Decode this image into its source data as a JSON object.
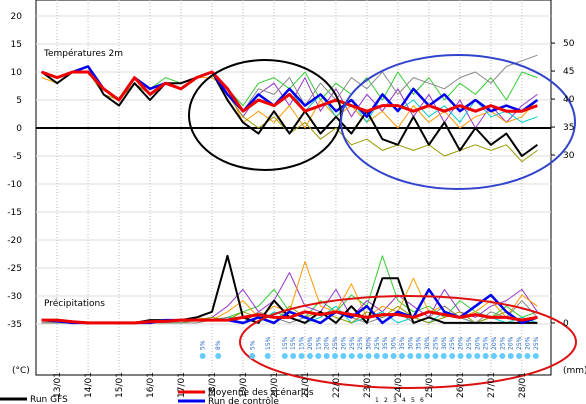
{
  "chart_data": {
    "type": "line",
    "temp_label": "Températures 2m",
    "precip_label": "Précipitations",
    "ylabel": "(°C)",
    "y2label": "(mm)",
    "ylim": [
      -44.1,
      22.86
    ],
    "yticks": [
      20,
      15,
      10,
      5,
      0,
      -5,
      -10,
      -15,
      -20,
      -25,
      -30,
      -35
    ],
    "y2lim": [
      -9.3,
      57.7
    ],
    "y2ticks": [
      50,
      45,
      40,
      35,
      30,
      0
    ],
    "xlim": [
      -0.68,
      15.94
    ],
    "xticks": [
      {
        "value": 0,
        "label": "13/01"
      },
      {
        "value": 1,
        "label": "14/01"
      },
      {
        "value": 2,
        "label": "15/01"
      },
      {
        "value": 3,
        "label": "16/01"
      },
      {
        "value": 4,
        "label": "17/01"
      },
      {
        "value": 5,
        "label": "18/01"
      },
      {
        "value": 6,
        "label": "19/01"
      },
      {
        "value": 7,
        "label": "20/01"
      },
      {
        "value": 8,
        "label": "21/01"
      },
      {
        "value": 9,
        "label": "22/01"
      },
      {
        "value": 10,
        "label": "23/01"
      },
      {
        "value": 11,
        "label": "24/01"
      },
      {
        "value": 12,
        "label": "25/01"
      },
      {
        "value": 13,
        "label": "26/01"
      },
      {
        "value": 14,
        "label": "27/01"
      },
      {
        "value": 15,
        "label": "28/01"
      }
    ],
    "grid": true,
    "x": [
      -0.5,
      0,
      0.5,
      1,
      1.5,
      2,
      2.5,
      3,
      3.5,
      4,
      4.5,
      5,
      5.5,
      6,
      6.5,
      7,
      7.5,
      8,
      8.5,
      9,
      9.5,
      10,
      10.5,
      11,
      11.5,
      12,
      12.5,
      13,
      13.5,
      14,
      14.5,
      15,
      15.5
    ],
    "series": [
      {
        "name": "1",
        "color": "#33cc33",
        "width": 1,
        "values": [
          10,
          9,
          10,
          11,
          7,
          5,
          9,
          7,
          9,
          8,
          9,
          10,
          7,
          4,
          8,
          9,
          7,
          10,
          5,
          8,
          6,
          9,
          5,
          10,
          6,
          9,
          5,
          8,
          6,
          9,
          5,
          10,
          9
        ],
        "precip_values": [
          0,
          0,
          0,
          0,
          0,
          0,
          0,
          0,
          0,
          0.5,
          1,
          0.5,
          1,
          2,
          3,
          6,
          2,
          1,
          4,
          2,
          5,
          3,
          12,
          4,
          2,
          3,
          1,
          4,
          2,
          1,
          3,
          1,
          2
        ]
      },
      {
        "name": "2",
        "color": "#9933cc",
        "width": 1,
        "values": [
          10,
          8,
          10,
          10,
          6,
          4,
          8,
          6,
          8,
          8,
          9,
          10,
          6,
          2,
          6,
          8,
          4,
          9,
          3,
          7,
          2,
          6,
          3,
          7,
          2,
          6,
          1,
          5,
          0,
          4,
          1,
          4,
          6
        ],
        "precip_values": [
          0,
          0,
          0,
          0,
          0,
          0,
          0,
          0,
          0,
          0.5,
          0.5,
          1,
          3,
          6,
          2,
          4,
          9,
          3,
          2,
          6,
          1,
          4,
          2,
          5,
          3,
          1,
          6,
          2,
          1,
          3,
          4,
          6,
          2
        ]
      },
      {
        "name": "3",
        "color": "#ff9900",
        "width": 1,
        "values": [
          9,
          8,
          10,
          10,
          7,
          5,
          9,
          6,
          8,
          7,
          9,
          9,
          7,
          1,
          3,
          1,
          4,
          0,
          5,
          2,
          4,
          1,
          3,
          0,
          4,
          1,
          3,
          0,
          2,
          3,
          1,
          2,
          5
        ],
        "precip_values": [
          0,
          0,
          0,
          0,
          0,
          0,
          0,
          0,
          0.5,
          0,
          1,
          0.5,
          2,
          4,
          1,
          3,
          2,
          11,
          3,
          2,
          7,
          1,
          3,
          2,
          8,
          2,
          3,
          1,
          2,
          4,
          1,
          5,
          3
        ]
      },
      {
        "name": "4",
        "color": "#00cccc",
        "width": 1,
        "values": [
          10,
          9,
          10,
          11,
          7,
          5,
          9,
          7,
          8,
          7,
          9,
          10,
          6,
          3,
          5,
          4,
          7,
          3,
          6,
          2,
          5,
          1,
          6,
          3,
          5,
          2,
          4,
          1,
          5,
          2,
          3,
          1,
          2
        ],
        "precip_values": [
          0,
          0,
          0,
          0,
          0,
          0,
          0,
          0,
          0,
          0,
          0.5,
          0.5,
          1,
          1,
          0,
          2,
          1,
          0,
          1,
          3,
          0,
          1,
          2,
          0,
          1,
          0,
          2,
          1,
          0,
          1,
          0,
          1,
          0
        ]
      },
      {
        "name": "5",
        "color": "#999900",
        "width": 1,
        "values": [
          10,
          9,
          10,
          10,
          6,
          5,
          8,
          6,
          8,
          7,
          9,
          10,
          6,
          2,
          0,
          2,
          -1,
          1,
          -2,
          0,
          -3,
          -2,
          -4,
          -3,
          -4,
          -3,
          -5,
          -4,
          -3,
          -4,
          -3,
          -6,
          -4
        ],
        "precip_values": [
          0,
          0,
          0,
          0,
          0,
          0,
          0,
          0,
          0,
          0,
          0.5,
          1,
          0.5,
          2,
          1,
          0,
          3,
          1,
          2,
          1,
          0,
          2,
          1,
          3,
          1,
          0,
          1,
          2,
          0,
          1,
          2,
          0,
          1
        ]
      },
      {
        "name": "6",
        "color": "#888888",
        "width": 1,
        "values": [
          10,
          9,
          10,
          10,
          7,
          5,
          9,
          6,
          8,
          8,
          9,
          10,
          7,
          3,
          7,
          6,
          9,
          4,
          8,
          5,
          9,
          7,
          10,
          6,
          9,
          8,
          7,
          9,
          10,
          8,
          11,
          12,
          13
        ],
        "precip_values": [
          0,
          0,
          0,
          0,
          0,
          0,
          0,
          0,
          0,
          0,
          0,
          0.5,
          1,
          0,
          2,
          1,
          0,
          1,
          0,
          2,
          1,
          0,
          1,
          2,
          0,
          1,
          3,
          1,
          0,
          2,
          1,
          4,
          1
        ]
      },
      {
        "name": "Run GFS",
        "color": "#000000",
        "width": 2,
        "values": [
          10,
          8,
          10,
          11,
          6,
          4,
          8,
          5,
          8,
          8,
          9,
          10,
          5,
          1,
          -1,
          3,
          -1,
          3,
          -1,
          2,
          -1,
          3,
          -2,
          -3,
          2,
          -3,
          1,
          -4,
          0,
          -3,
          -1,
          -5,
          -3
        ],
        "precip_values": [
          0.5,
          0.5,
          0,
          0,
          0,
          0,
          0,
          0.5,
          0.5,
          0.5,
          1,
          2,
          12,
          1,
          0,
          4,
          1,
          0,
          2,
          0,
          3,
          0,
          8,
          8,
          0,
          1,
          0,
          0,
          0,
          0,
          0,
          0,
          0
        ]
      },
      {
        "name": "Run de contrôle",
        "color": "#0000ee",
        "width": 2.5,
        "values": [
          10,
          9,
          10,
          11,
          7,
          5,
          9,
          7,
          8,
          7,
          9,
          10,
          6,
          3,
          6,
          4,
          7,
          4,
          6,
          3,
          5,
          2,
          6,
          3,
          7,
          4,
          6,
          3,
          5,
          3,
          4,
          3,
          5
        ],
        "precip_values": [
          0.5,
          0.3,
          0,
          0,
          0,
          0,
          0,
          0,
          0.5,
          0.5,
          0.5,
          0.5,
          0.5,
          0,
          1,
          0,
          2,
          1,
          0,
          2,
          1,
          3,
          0,
          2,
          1,
          6,
          2,
          1,
          3,
          5,
          2,
          0,
          1
        ]
      },
      {
        "name": "Moyenne des scénarios",
        "color": "#ee0000",
        "width": 3,
        "values": [
          10,
          9,
          10,
          10,
          7,
          5,
          9,
          6,
          8,
          7,
          9,
          10,
          7,
          3,
          5,
          4,
          6,
          3,
          4,
          5,
          4,
          3,
          4,
          4,
          3,
          4,
          3,
          4,
          3,
          4,
          3,
          3,
          4
        ],
        "precip_values": [
          0.5,
          0.5,
          0.2,
          0,
          0,
          0,
          0,
          0.2,
          0.3,
          0.5,
          0.5,
          0.5,
          0.5,
          1,
          1.5,
          1,
          1,
          2,
          1.5,
          2,
          1.5,
          1,
          1.5,
          1.5,
          1,
          2,
          1.5,
          1,
          1.5,
          1,
          1,
          0.5,
          1
        ]
      }
    ],
    "snow": [
      {
        "x": 4.7,
        "label": "5%"
      },
      {
        "x": 5.2,
        "label": "8%"
      },
      {
        "x": 6.3,
        "label": "5%"
      },
      {
        "x": 6.8,
        "label": "15%"
      },
      {
        "x": 7.35,
        "label": "15%"
      },
      {
        "x": 7.62,
        "label": "15%"
      },
      {
        "x": 7.89,
        "label": "15%"
      },
      {
        "x": 8.16,
        "label": "20%"
      },
      {
        "x": 8.43,
        "label": "15%"
      },
      {
        "x": 8.7,
        "label": "20%"
      },
      {
        "x": 8.97,
        "label": "25%"
      },
      {
        "x": 9.24,
        "label": "20%"
      },
      {
        "x": 9.51,
        "label": "25%"
      },
      {
        "x": 9.78,
        "label": "25%"
      },
      {
        "x": 10.05,
        "label": "30%"
      },
      {
        "x": 10.32,
        "label": "25%"
      },
      {
        "x": 10.59,
        "label": "35%"
      },
      {
        "x": 10.86,
        "label": "30%"
      },
      {
        "x": 11.13,
        "label": "35%"
      },
      {
        "x": 11.4,
        "label": "30%"
      },
      {
        "x": 11.67,
        "label": "35%"
      },
      {
        "x": 11.94,
        "label": "30%"
      },
      {
        "x": 12.21,
        "label": "25%"
      },
      {
        "x": 12.48,
        "label": "30%"
      },
      {
        "x": 12.75,
        "label": "25%"
      },
      {
        "x": 13.02,
        "label": "20%"
      },
      {
        "x": 13.29,
        "label": "25%"
      },
      {
        "x": 13.56,
        "label": "20%"
      },
      {
        "x": 13.83,
        "label": "25%"
      },
      {
        "x": 14.1,
        "label": "20%"
      },
      {
        "x": 14.37,
        "label": "25%"
      },
      {
        "x": 14.64,
        "label": "20%"
      },
      {
        "x": 14.91,
        "label": "25%"
      },
      {
        "x": 15.18,
        "label": "20%"
      },
      {
        "x": 15.45,
        "label": "25%"
      }
    ]
  }
}
